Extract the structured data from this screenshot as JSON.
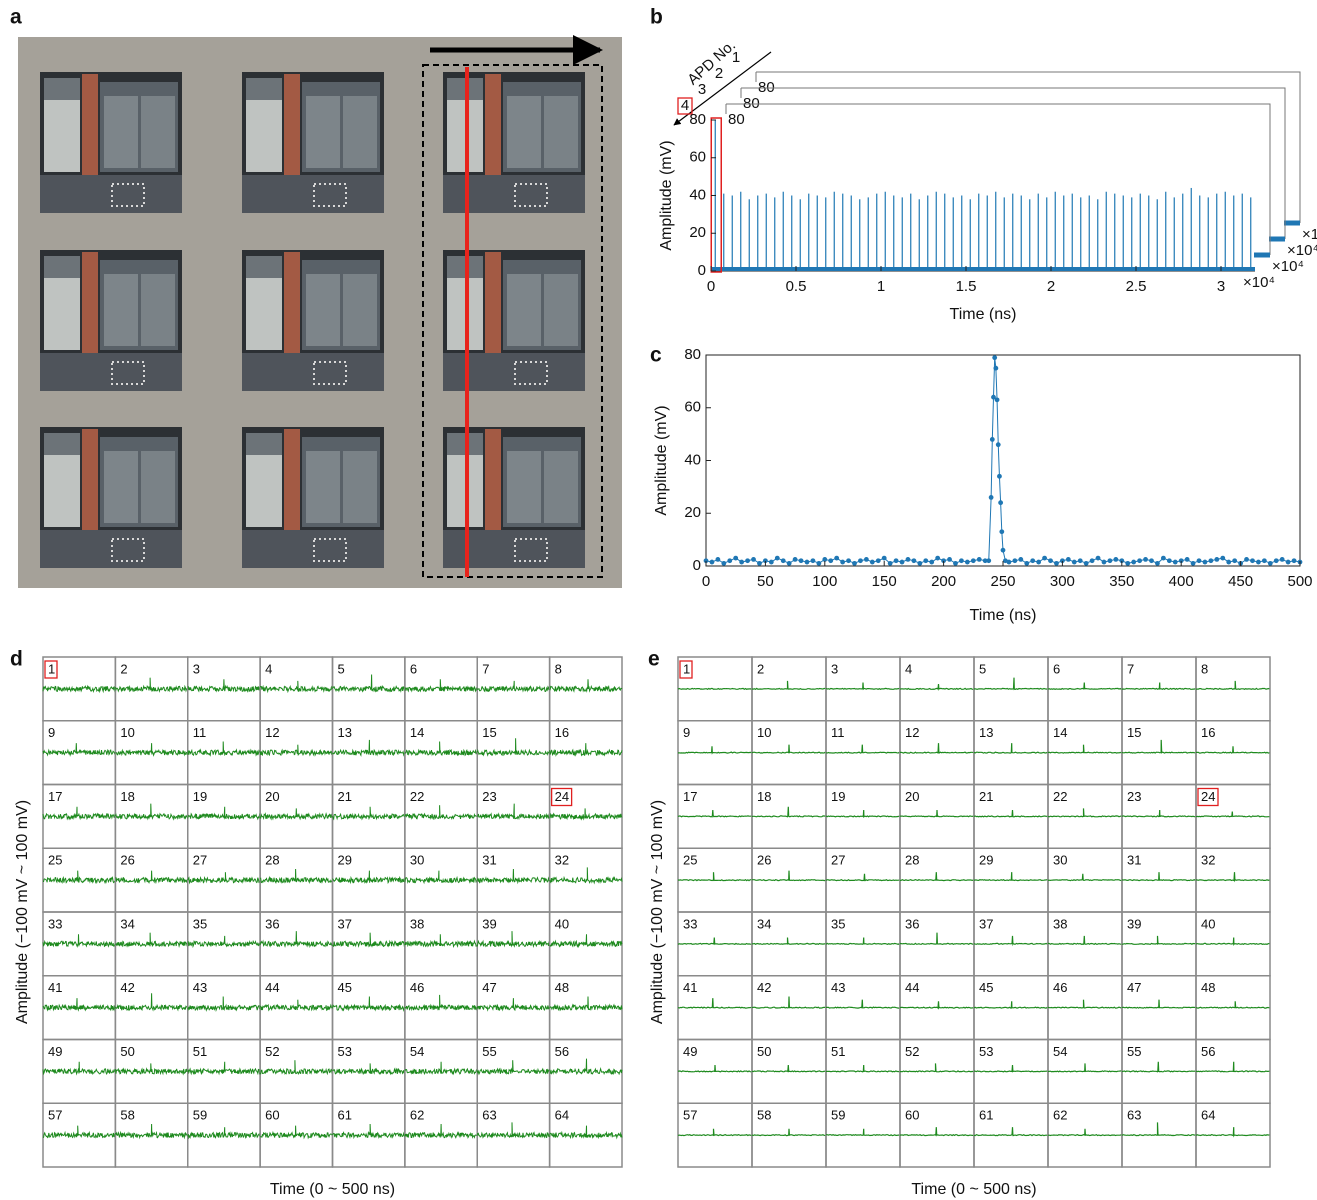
{
  "photo": {
    "panel": "a"
  },
  "chart_data": [
    {
      "type": "waveform",
      "panel": "b",
      "xlabel": "Time (ns)",
      "ylabel": "Amplitude (mV)",
      "xlim": [
        0,
        3.2
      ],
      "ylim": [
        0,
        80
      ],
      "xticks": [
        0,
        0.5,
        1,
        1.5,
        2,
        2.5,
        3
      ],
      "yticks": [
        0,
        20,
        40,
        60,
        80
      ],
      "x_multiplier": "×10⁴",
      "stack_axis_label": "APD No.",
      "stack_labels": [
        1,
        2,
        3,
        4
      ],
      "stack_ytick": 80,
      "boxed": 4,
      "color": "#1f77b4",
      "x": [
        0.025,
        0.075,
        0.125,
        0.175,
        0.225,
        0.275,
        0.325,
        0.375,
        0.425,
        0.475,
        0.525,
        0.575,
        0.625,
        0.675,
        0.725,
        0.775,
        0.825,
        0.875,
        0.925,
        0.975,
        1.025,
        1.075,
        1.125,
        1.175,
        1.225,
        1.275,
        1.325,
        1.375,
        1.425,
        1.475,
        1.525,
        1.575,
        1.625,
        1.675,
        1.725,
        1.775,
        1.825,
        1.875,
        1.925,
        1.975,
        2.025,
        2.075,
        2.125,
        2.175,
        2.225,
        2.275,
        2.325,
        2.375,
        2.425,
        2.475,
        2.525,
        2.575,
        2.625,
        2.675,
        2.725,
        2.775,
        2.825,
        2.875,
        2.925,
        2.975,
        3.025,
        3.075,
        3.125,
        3.175
      ],
      "values": [
        80,
        41,
        40,
        42,
        38,
        40,
        41,
        39,
        42,
        40,
        38,
        41,
        40,
        39,
        42,
        41,
        40,
        38,
        39,
        41,
        42,
        40,
        39,
        41,
        38,
        40,
        42,
        41,
        39,
        40,
        38,
        41,
        40,
        42,
        39,
        41,
        40,
        38,
        41,
        39,
        42,
        40,
        41,
        39,
        40,
        38,
        42,
        41,
        40,
        39,
        41,
        40,
        38,
        42,
        39,
        41,
        44,
        40,
        39,
        41,
        42,
        40,
        41,
        39
      ]
    },
    {
      "type": "line",
      "panel": "c",
      "xlabel": "Time (ns)",
      "ylabel": "Amplitude (mV)",
      "xlim": [
        0,
        500
      ],
      "ylim": [
        0,
        80
      ],
      "xticks": [
        0,
        50,
        100,
        150,
        200,
        250,
        300,
        350,
        400,
        450,
        500
      ],
      "yticks": [
        0,
        20,
        40,
        60,
        80
      ],
      "color": "#1f77b4",
      "x": [
        0,
        5,
        10,
        15,
        20,
        25,
        30,
        35,
        40,
        45,
        50,
        55,
        60,
        65,
        70,
        75,
        80,
        85,
        90,
        95,
        100,
        105,
        110,
        115,
        120,
        125,
        130,
        135,
        140,
        145,
        150,
        155,
        160,
        165,
        170,
        175,
        180,
        185,
        190,
        195,
        200,
        205,
        210,
        215,
        220,
        225,
        230,
        235,
        238,
        240,
        241,
        242,
        243,
        244,
        245,
        246,
        247,
        248,
        249,
        250,
        252,
        255,
        260,
        265,
        270,
        275,
        280,
        285,
        290,
        295,
        300,
        305,
        310,
        315,
        320,
        325,
        330,
        335,
        340,
        345,
        350,
        355,
        360,
        365,
        370,
        375,
        380,
        385,
        390,
        395,
        400,
        405,
        410,
        415,
        420,
        425,
        430,
        435,
        440,
        445,
        450,
        455,
        460,
        465,
        470,
        475,
        480,
        485,
        490,
        495,
        500
      ],
      "values": [
        2,
        1.5,
        2.5,
        1,
        2,
        3,
        1.5,
        2,
        2.5,
        1,
        2,
        1.5,
        3,
        2,
        1,
        2.5,
        2,
        1.5,
        2,
        1,
        2.5,
        2,
        3,
        1.5,
        2,
        1,
        2,
        2.5,
        1.5,
        2,
        3,
        1,
        2,
        1.5,
        2.5,
        2,
        1,
        2,
        1.5,
        3,
        2,
        2.5,
        1,
        2,
        1.5,
        2,
        2.5,
        2,
        2,
        26,
        48,
        64,
        79,
        75,
        63,
        46,
        34,
        24,
        13,
        6,
        2,
        1.5,
        2,
        2.5,
        1,
        2,
        1.5,
        3,
        2,
        1,
        2,
        2.5,
        1.5,
        2,
        1,
        2,
        3,
        1.5,
        2,
        2.5,
        2,
        1,
        1.5,
        2,
        2.5,
        2,
        1,
        3,
        2,
        1.5,
        2,
        2.5,
        1,
        2,
        1.5,
        2,
        2.5,
        3,
        1.5,
        2,
        1,
        2.5,
        2,
        1.5,
        2,
        1,
        2,
        2.5,
        1.5,
        2,
        1.5
      ]
    },
    {
      "type": "small-multiples",
      "panel": "d",
      "xlabel": "Time (0 ~ 500 ns)",
      "ylabel": "Amplitude (−100 mV ~ 100 mV)",
      "xlim": [
        0,
        500
      ],
      "ylim": [
        -100,
        100
      ],
      "color": "#1e8a1e",
      "boxed": [
        1,
        24
      ],
      "cells": [
        1,
        2,
        3,
        4,
        5,
        6,
        7,
        8,
        9,
        10,
        11,
        12,
        13,
        14,
        15,
        16,
        17,
        18,
        19,
        20,
        21,
        22,
        23,
        24,
        25,
        26,
        27,
        28,
        29,
        30,
        31,
        32,
        33,
        34,
        35,
        36,
        37,
        38,
        39,
        40,
        41,
        42,
        43,
        44,
        45,
        46,
        47,
        48,
        49,
        50,
        51,
        52,
        53,
        54,
        55,
        56,
        57,
        58,
        59,
        60,
        61,
        62,
        63,
        64
      ],
      "peak_times": [
        null,
        240,
        250,
        260,
        270,
        245,
        255,
        265,
        230,
        250,
        245,
        260,
        255,
        240,
        265,
        250,
        235,
        245,
        255,
        250,
        260,
        240,
        255,
        245,
        240,
        250,
        260,
        245,
        255,
        235,
        250,
        260,
        245,
        240,
        255,
        250,
        260,
        245,
        240,
        255,
        235,
        250,
        245,
        260,
        255,
        240,
        250,
        265,
        250,
        245,
        255,
        240,
        260,
        250,
        245,
        255,
        240,
        250,
        255,
        245,
        260,
        250,
        240,
        255
      ],
      "peaks": [
        null,
        35,
        30,
        25,
        45,
        30,
        25,
        30,
        30,
        30,
        35,
        25,
        40,
        35,
        45,
        30,
        30,
        40,
        30,
        25,
        30,
        35,
        40,
        25,
        30,
        30,
        25,
        35,
        30,
        30,
        35,
        40,
        30,
        35,
        25,
        40,
        35,
        30,
        40,
        30,
        30,
        45,
        35,
        25,
        35,
        40,
        30,
        35,
        30,
        25,
        30,
        35,
        25,
        30,
        35,
        40,
        30,
        35,
        25,
        30,
        35,
        35,
        40,
        30
      ]
    },
    {
      "type": "small-multiples",
      "panel": "e",
      "xlabel": "Time (0 ~ 500 ns)",
      "ylabel": "Amplitude (−100 mV ~ 100 mV)",
      "xlim": [
        0,
        500
      ],
      "ylim": [
        -100,
        100
      ],
      "color": "#1e8a1e",
      "boxed": [
        1,
        24
      ],
      "cells": [
        1,
        2,
        3,
        4,
        5,
        6,
        7,
        8,
        9,
        10,
        11,
        12,
        13,
        14,
        15,
        16,
        17,
        18,
        19,
        20,
        21,
        22,
        23,
        24,
        25,
        26,
        27,
        28,
        29,
        30,
        31,
        32,
        33,
        34,
        35,
        36,
        37,
        38,
        39,
        40,
        41,
        42,
        43,
        44,
        45,
        46,
        47,
        48,
        49,
        50,
        51,
        52,
        53,
        54,
        55,
        56,
        57,
        58,
        59,
        60,
        61,
        62,
        63,
        64
      ],
      "peak_times": [
        null,
        240,
        250,
        260,
        270,
        245,
        255,
        265,
        230,
        250,
        245,
        260,
        255,
        240,
        265,
        250,
        235,
        245,
        255,
        250,
        260,
        240,
        255,
        245,
        240,
        250,
        260,
        245,
        255,
        235,
        250,
        260,
        245,
        240,
        255,
        250,
        260,
        245,
        240,
        255,
        235,
        250,
        245,
        260,
        255,
        240,
        250,
        265,
        250,
        245,
        255,
        240,
        260,
        250,
        245,
        255,
        240,
        250,
        255,
        245,
        260,
        250,
        240,
        255
      ],
      "peaks": [
        null,
        25,
        20,
        15,
        35,
        20,
        20,
        25,
        20,
        25,
        25,
        30,
        30,
        25,
        40,
        20,
        20,
        30,
        20,
        20,
        20,
        25,
        20,
        15,
        25,
        30,
        20,
        25,
        25,
        20,
        25,
        25,
        20,
        20,
        20,
        35,
        25,
        25,
        25,
        20,
        30,
        35,
        25,
        20,
        20,
        25,
        25,
        20,
        20,
        20,
        20,
        25,
        20,
        25,
        30,
        30,
        20,
        20,
        20,
        25,
        25,
        20,
        40,
        25
      ]
    }
  ]
}
